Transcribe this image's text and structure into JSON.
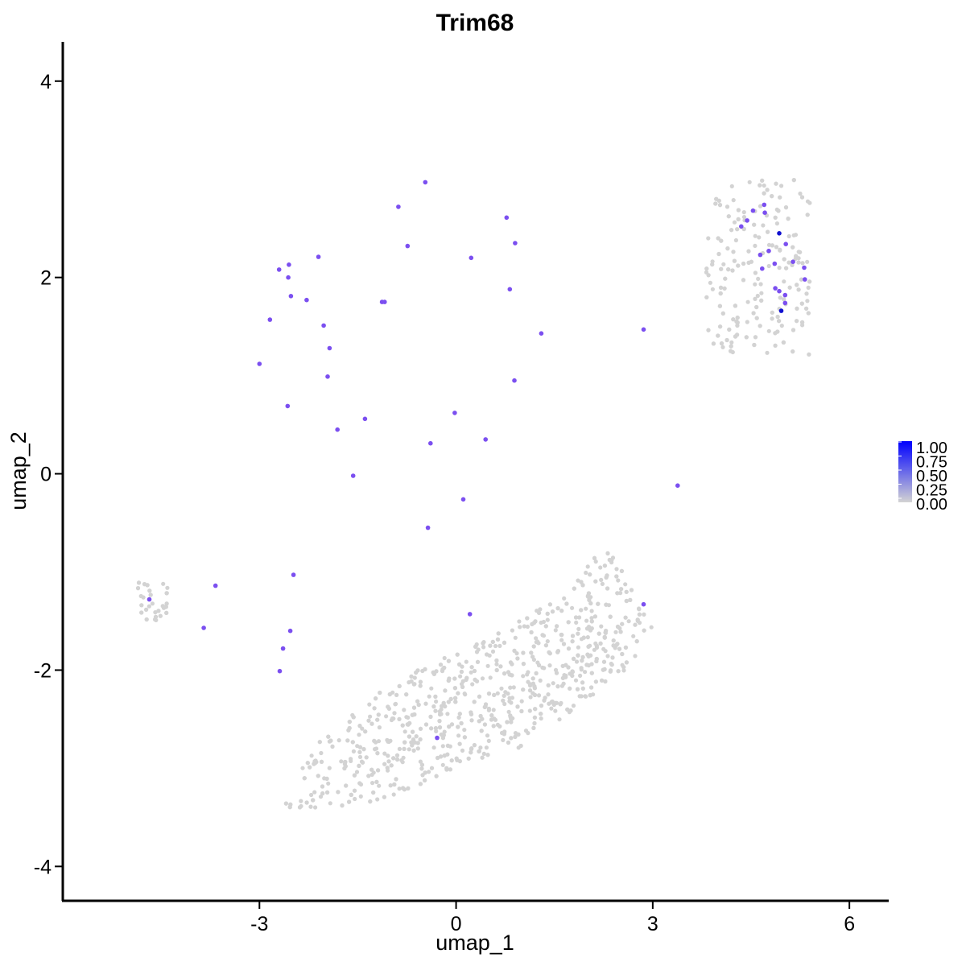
{
  "chart_data": {
    "type": "scatter",
    "title": "Trim68",
    "xlabel": "umap_1",
    "ylabel": "umap_2",
    "xlim": [
      -6.0,
      6.6
    ],
    "ylim": [
      -4.35,
      4.4
    ],
    "xticks": [
      -3,
      0,
      3,
      6
    ],
    "yticks": [
      -4,
      -2,
      0,
      2,
      4
    ],
    "xtick_labels": [
      "-3",
      "0",
      "3",
      "6"
    ],
    "ytick_labels": [
      "-4",
      "-2",
      "0",
      "2",
      "4"
    ],
    "grid": false,
    "legend": {
      "placement": "right",
      "colorbar_labels": [
        "1.00",
        "0.75",
        "0.50",
        "0.25",
        "0.00"
      ],
      "low_color": "#d3d3d3",
      "high_color": "#0000ff"
    },
    "colors": {
      "zero_expression": "#d3d3d3",
      "expressed": "#7b4ff0",
      "max_expression": "#1010d0"
    },
    "expressing_cells": [
      {
        "x": -0.47,
        "y": 2.97,
        "value": 0.7
      },
      {
        "x": -0.88,
        "y": 2.72,
        "value": 0.7
      },
      {
        "x": 0.77,
        "y": 2.61,
        "value": 0.7
      },
      {
        "x": -0.74,
        "y": 2.32,
        "value": 0.7
      },
      {
        "x": 0.9,
        "y": 2.35,
        "value": 0.7
      },
      {
        "x": 0.23,
        "y": 2.2,
        "value": 0.7
      },
      {
        "x": -2.1,
        "y": 2.21,
        "value": 0.7
      },
      {
        "x": -2.55,
        "y": 2.13,
        "value": 0.7
      },
      {
        "x": -2.7,
        "y": 2.08,
        "value": 0.7
      },
      {
        "x": -2.56,
        "y": 2.0,
        "value": 0.7
      },
      {
        "x": -2.52,
        "y": 1.81,
        "value": 0.7
      },
      {
        "x": -2.28,
        "y": 1.77,
        "value": 0.7
      },
      {
        "x": -1.13,
        "y": 1.75,
        "value": 0.7
      },
      {
        "x": -1.09,
        "y": 1.75,
        "value": 0.7
      },
      {
        "x": 0.82,
        "y": 1.88,
        "value": 0.7
      },
      {
        "x": -2.84,
        "y": 1.57,
        "value": 0.7
      },
      {
        "x": -2.02,
        "y": 1.51,
        "value": 0.7
      },
      {
        "x": 1.3,
        "y": 1.43,
        "value": 0.7
      },
      {
        "x": 2.86,
        "y": 1.47,
        "value": 0.7
      },
      {
        "x": -1.93,
        "y": 1.28,
        "value": 0.7
      },
      {
        "x": -3.0,
        "y": 1.12,
        "value": 0.7
      },
      {
        "x": -1.96,
        "y": 0.99,
        "value": 0.7
      },
      {
        "x": 0.89,
        "y": 0.95,
        "value": 0.7
      },
      {
        "x": -2.57,
        "y": 0.69,
        "value": 0.7
      },
      {
        "x": -0.02,
        "y": 0.62,
        "value": 0.7
      },
      {
        "x": -1.39,
        "y": 0.56,
        "value": 0.7
      },
      {
        "x": -1.81,
        "y": 0.45,
        "value": 0.7
      },
      {
        "x": 0.45,
        "y": 0.35,
        "value": 0.7
      },
      {
        "x": -0.39,
        "y": 0.31,
        "value": 0.7
      },
      {
        "x": -1.57,
        "y": -0.02,
        "value": 0.7
      },
      {
        "x": 3.38,
        "y": -0.12,
        "value": 0.7
      },
      {
        "x": 0.11,
        "y": -0.26,
        "value": 0.7
      },
      {
        "x": -0.43,
        "y": -0.55,
        "value": 0.7
      },
      {
        "x": -2.48,
        "y": -1.03,
        "value": 0.7
      },
      {
        "x": -3.67,
        "y": -1.14,
        "value": 0.7
      },
      {
        "x": -4.68,
        "y": -1.28,
        "value": 0.7
      },
      {
        "x": 2.86,
        "y": -1.33,
        "value": 0.7
      },
      {
        "x": 0.21,
        "y": -1.43,
        "value": 0.7
      },
      {
        "x": -3.85,
        "y": -1.57,
        "value": 0.7
      },
      {
        "x": -2.53,
        "y": -1.6,
        "value": 0.7
      },
      {
        "x": -2.64,
        "y": -1.78,
        "value": 0.7
      },
      {
        "x": -2.69,
        "y": -2.01,
        "value": 0.7
      },
      {
        "x": -0.29,
        "y": -2.69,
        "value": 0.7
      },
      {
        "x": 4.35,
        "y": 2.52,
        "value": 0.7
      },
      {
        "x": 4.44,
        "y": 2.58,
        "value": 0.7
      },
      {
        "x": 4.53,
        "y": 2.68,
        "value": 0.7
      },
      {
        "x": 4.7,
        "y": 2.74,
        "value": 0.7
      },
      {
        "x": 4.71,
        "y": 2.66,
        "value": 0.7
      },
      {
        "x": 4.93,
        "y": 2.45,
        "value": 1.0
      },
      {
        "x": 5.03,
        "y": 2.34,
        "value": 0.7
      },
      {
        "x": 4.77,
        "y": 2.27,
        "value": 0.7
      },
      {
        "x": 4.64,
        "y": 2.23,
        "value": 0.7
      },
      {
        "x": 4.86,
        "y": 2.14,
        "value": 0.7
      },
      {
        "x": 5.14,
        "y": 2.16,
        "value": 0.7
      },
      {
        "x": 4.67,
        "y": 2.09,
        "value": 0.7
      },
      {
        "x": 5.31,
        "y": 2.1,
        "value": 0.7
      },
      {
        "x": 5.32,
        "y": 1.98,
        "value": 0.7
      },
      {
        "x": 4.87,
        "y": 1.89,
        "value": 0.7
      },
      {
        "x": 4.93,
        "y": 1.86,
        "value": 0.7
      },
      {
        "x": 5.02,
        "y": 1.82,
        "value": 0.7
      },
      {
        "x": 5.02,
        "y": 1.74,
        "value": 0.7
      },
      {
        "x": 4.96,
        "y": 1.66,
        "value": 1.0
      }
    ],
    "non_expressing_cell_count": 1500
  }
}
